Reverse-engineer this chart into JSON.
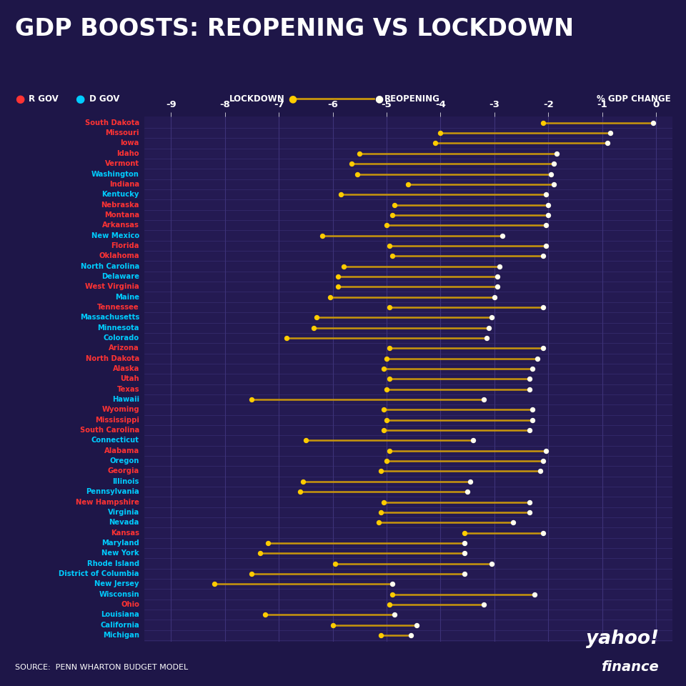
{
  "title": "GDP BOOSTS: REOPENING VS LOCKDOWN",
  "source": "SOURCE:  PENN WHARTON BUDGET MODEL",
  "bg_color": "#1e1648",
  "plot_bg_color": "#241a52",
  "grid_color": "#3d3278",
  "states": [
    {
      "name": "South Dakota",
      "party": "R",
      "lockdown": -2.1,
      "reopen": -0.05
    },
    {
      "name": "Missouri",
      "party": "R",
      "lockdown": -4.0,
      "reopen": -0.85
    },
    {
      "name": "Iowa",
      "party": "R",
      "lockdown": -4.1,
      "reopen": -0.9
    },
    {
      "name": "Idaho",
      "party": "R",
      "lockdown": -5.5,
      "reopen": -1.85
    },
    {
      "name": "Vermont",
      "party": "R",
      "lockdown": -5.65,
      "reopen": -1.9
    },
    {
      "name": "Washington",
      "party": "D",
      "lockdown": -5.55,
      "reopen": -1.95
    },
    {
      "name": "Indiana",
      "party": "R",
      "lockdown": -4.6,
      "reopen": -1.9
    },
    {
      "name": "Kentucky",
      "party": "D",
      "lockdown": -5.85,
      "reopen": -2.05
    },
    {
      "name": "Nebraska",
      "party": "R",
      "lockdown": -4.85,
      "reopen": -2.0
    },
    {
      "name": "Montana",
      "party": "R",
      "lockdown": -4.9,
      "reopen": -2.0
    },
    {
      "name": "Arkansas",
      "party": "R",
      "lockdown": -5.0,
      "reopen": -2.05
    },
    {
      "name": "New Mexico",
      "party": "D",
      "lockdown": -6.2,
      "reopen": -2.85
    },
    {
      "name": "Florida",
      "party": "R",
      "lockdown": -4.95,
      "reopen": -2.05
    },
    {
      "name": "Oklahoma",
      "party": "R",
      "lockdown": -4.9,
      "reopen": -2.1
    },
    {
      "name": "North Carolina",
      "party": "D",
      "lockdown": -5.8,
      "reopen": -2.9
    },
    {
      "name": "Delaware",
      "party": "D",
      "lockdown": -5.9,
      "reopen": -2.95
    },
    {
      "name": "West Virginia",
      "party": "R",
      "lockdown": -5.9,
      "reopen": -2.95
    },
    {
      "name": "Maine",
      "party": "D",
      "lockdown": -6.05,
      "reopen": -3.0
    },
    {
      "name": "Tennessee",
      "party": "R",
      "lockdown": -4.95,
      "reopen": -2.1
    },
    {
      "name": "Massachusetts",
      "party": "D",
      "lockdown": -6.3,
      "reopen": -3.05
    },
    {
      "name": "Minnesota",
      "party": "D",
      "lockdown": -6.35,
      "reopen": -3.1
    },
    {
      "name": "Colorado",
      "party": "D",
      "lockdown": -6.85,
      "reopen": -3.15
    },
    {
      "name": "Arizona",
      "party": "R",
      "lockdown": -4.95,
      "reopen": -2.1
    },
    {
      "name": "North Dakota",
      "party": "R",
      "lockdown": -5.0,
      "reopen": -2.2
    },
    {
      "name": "Alaska",
      "party": "R",
      "lockdown": -5.05,
      "reopen": -2.3
    },
    {
      "name": "Utah",
      "party": "R",
      "lockdown": -4.95,
      "reopen": -2.35
    },
    {
      "name": "Texas",
      "party": "R",
      "lockdown": -5.0,
      "reopen": -2.35
    },
    {
      "name": "Hawaii",
      "party": "D",
      "lockdown": -7.5,
      "reopen": -3.2
    },
    {
      "name": "Wyoming",
      "party": "R",
      "lockdown": -5.05,
      "reopen": -2.3
    },
    {
      "name": "Mississippi",
      "party": "R",
      "lockdown": -5.0,
      "reopen": -2.3
    },
    {
      "name": "South Carolina",
      "party": "R",
      "lockdown": -5.05,
      "reopen": -2.35
    },
    {
      "name": "Connecticut",
      "party": "D",
      "lockdown": -6.5,
      "reopen": -3.4
    },
    {
      "name": "Alabama",
      "party": "R",
      "lockdown": -4.95,
      "reopen": -2.05
    },
    {
      "name": "Oregon",
      "party": "D",
      "lockdown": -5.0,
      "reopen": -2.1
    },
    {
      "name": "Georgia",
      "party": "R",
      "lockdown": -5.1,
      "reopen": -2.15
    },
    {
      "name": "Illinois",
      "party": "D",
      "lockdown": -6.55,
      "reopen": -3.45
    },
    {
      "name": "Pennsylvania",
      "party": "D",
      "lockdown": -6.6,
      "reopen": -3.5
    },
    {
      "name": "New Hampshire",
      "party": "R",
      "lockdown": -5.05,
      "reopen": -2.35
    },
    {
      "name": "Virginia",
      "party": "D",
      "lockdown": -5.1,
      "reopen": -2.35
    },
    {
      "name": "Nevada",
      "party": "D",
      "lockdown": -5.15,
      "reopen": -2.65
    },
    {
      "name": "Kansas",
      "party": "R",
      "lockdown": -3.55,
      "reopen": -2.1
    },
    {
      "name": "Maryland",
      "party": "D",
      "lockdown": -7.2,
      "reopen": -3.55
    },
    {
      "name": "New York",
      "party": "D",
      "lockdown": -7.35,
      "reopen": -3.55
    },
    {
      "name": "Rhode Island",
      "party": "D",
      "lockdown": -5.95,
      "reopen": -3.05
    },
    {
      "name": "District of Columbia",
      "party": "D",
      "lockdown": -7.5,
      "reopen": -3.55
    },
    {
      "name": "New Jersey",
      "party": "D",
      "lockdown": -8.2,
      "reopen": -4.9
    },
    {
      "name": "Wisconsin",
      "party": "D",
      "lockdown": -4.9,
      "reopen": -2.25
    },
    {
      "name": "Ohio",
      "party": "R",
      "lockdown": -4.95,
      "reopen": -3.2
    },
    {
      "name": "Louisiana",
      "party": "D",
      "lockdown": -7.25,
      "reopen": -4.85
    },
    {
      "name": "California",
      "party": "D",
      "lockdown": -6.0,
      "reopen": -4.45
    },
    {
      "name": "Michigan",
      "party": "D",
      "lockdown": -5.1,
      "reopen": -4.55
    }
  ],
  "r_color": "#ff3333",
  "d_color": "#00ccff",
  "dot_lockdown_color": "#ffcc00",
  "dot_reopen_color": "#fffff0",
  "line_color": "#c8960c",
  "xlim": [
    -9.5,
    0.3
  ],
  "xticks": [
    -9,
    -8,
    -7,
    -6,
    -5,
    -4,
    -3,
    -2,
    -1,
    0
  ]
}
